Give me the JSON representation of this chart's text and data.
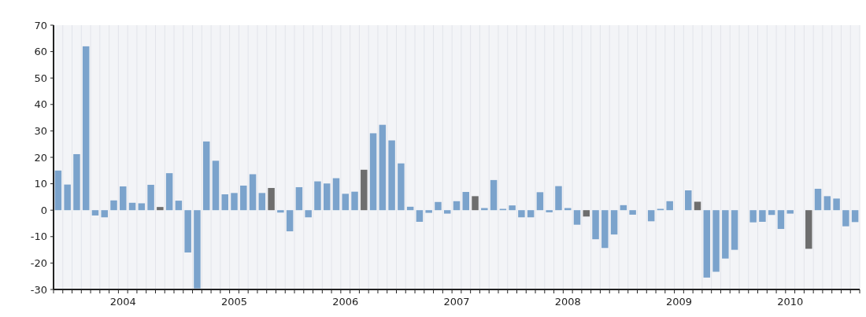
{
  "chart_data": {
    "type": "bar",
    "categories": [
      null,
      null,
      null,
      null,
      null,
      null,
      null,
      "2004",
      null,
      null,
      null,
      null,
      null,
      null,
      null,
      null,
      null,
      null,
      null,
      "2005",
      null,
      null,
      null,
      null,
      null,
      null,
      null,
      null,
      null,
      null,
      null,
      "2006",
      null,
      null,
      null,
      null,
      null,
      null,
      null,
      null,
      null,
      null,
      null,
      "2007",
      null,
      null,
      null,
      null,
      null,
      null,
      null,
      null,
      null,
      null,
      null,
      "2008",
      null,
      null,
      null,
      null,
      null,
      null,
      null,
      null,
      null,
      null,
      null,
      "2009",
      null,
      null,
      null,
      null,
      null,
      null,
      null,
      null,
      null,
      null,
      null,
      "2010",
      null,
      null,
      null,
      null,
      null,
      null,
      null
    ],
    "values": [
      15,
      9.7,
      21.2,
      62,
      -2,
      -2.7,
      3.7,
      9,
      2.8,
      2.6,
      9.6,
      1.2,
      14,
      3.6,
      -16,
      -29.6,
      26,
      18.7,
      6,
      6.5,
      9.3,
      13.6,
      6.5,
      8.4,
      -0.9,
      -8,
      8.7,
      -2.7,
      10.9,
      10.1,
      12.1,
      6.2,
      7,
      15.3,
      29.1,
      32.3,
      26.4,
      17.7,
      1.3,
      -4.4,
      -1,
      3.1,
      -1.3,
      3.4,
      6.9,
      5.3,
      0.8,
      11.4,
      0.5,
      1.8,
      -2.7,
      -2.7,
      6.8,
      -0.8,
      9.1,
      0.8,
      -5.5,
      -2.4,
      -11,
      -14.3,
      -9.2,
      1.9,
      -1.7,
      null,
      -4.2,
      0.5,
      3.4,
      null,
      7.5,
      3.2,
      -25.5,
      -23.3,
      -18.3,
      -15,
      null,
      -4.6,
      -4.4,
      -1.8,
      -7.1,
      -1.3,
      null,
      -14.6,
      8.1,
      5.3,
      4.4,
      -6.1,
      -4.5
    ],
    "colors": [
      "#7ba3cc",
      "#7ba3cc",
      "#7ba3cc",
      "#7ba3cc",
      "#7ba3cc",
      "#7ba3cc",
      "#7ba3cc",
      "#7ba3cc",
      "#7ba3cc",
      "#7ba3cc",
      "#7ba3cc",
      "#6e6e6e",
      "#7ba3cc",
      "#7ba3cc",
      "#7ba3cc",
      "#7ba3cc",
      "#7ba3cc",
      "#7ba3cc",
      "#7ba3cc",
      "#7ba3cc",
      "#7ba3cc",
      "#7ba3cc",
      "#7ba3cc",
      "#6e6e6e",
      "#7ba3cc",
      "#7ba3cc",
      "#7ba3cc",
      "#7ba3cc",
      "#7ba3cc",
      "#7ba3cc",
      "#7ba3cc",
      "#7ba3cc",
      "#7ba3cc",
      "#6e6e6e",
      "#7ba3cc",
      "#7ba3cc",
      "#7ba3cc",
      "#7ba3cc",
      "#7ba3cc",
      "#7ba3cc",
      "#7ba3cc",
      "#7ba3cc",
      "#7ba3cc",
      "#7ba3cc",
      "#7ba3cc",
      "#6e6e6e",
      "#7ba3cc",
      "#7ba3cc",
      "#7ba3cc",
      "#7ba3cc",
      "#7ba3cc",
      "#7ba3cc",
      "#7ba3cc",
      "#7ba3cc",
      "#7ba3cc",
      "#7ba3cc",
      "#7ba3cc",
      "#6e6e6e",
      "#7ba3cc",
      "#7ba3cc",
      "#7ba3cc",
      "#7ba3cc",
      "#7ba3cc",
      null,
      "#7ba3cc",
      "#7ba3cc",
      "#7ba3cc",
      null,
      "#7ba3cc",
      "#6e6e6e",
      "#7ba3cc",
      "#7ba3cc",
      "#7ba3cc",
      "#7ba3cc",
      null,
      "#7ba3cc",
      "#7ba3cc",
      "#7ba3cc",
      "#7ba3cc",
      "#7ba3cc",
      null,
      "#6e6e6e",
      "#7ba3cc",
      "#7ba3cc",
      "#7ba3cc",
      "#7ba3cc",
      "#7ba3cc"
    ],
    "ylim": [
      -30,
      70
    ],
    "yticks": [
      -30,
      -20,
      -10,
      0,
      10,
      20,
      30,
      40,
      50,
      60,
      70
    ],
    "grid": "x"
  }
}
